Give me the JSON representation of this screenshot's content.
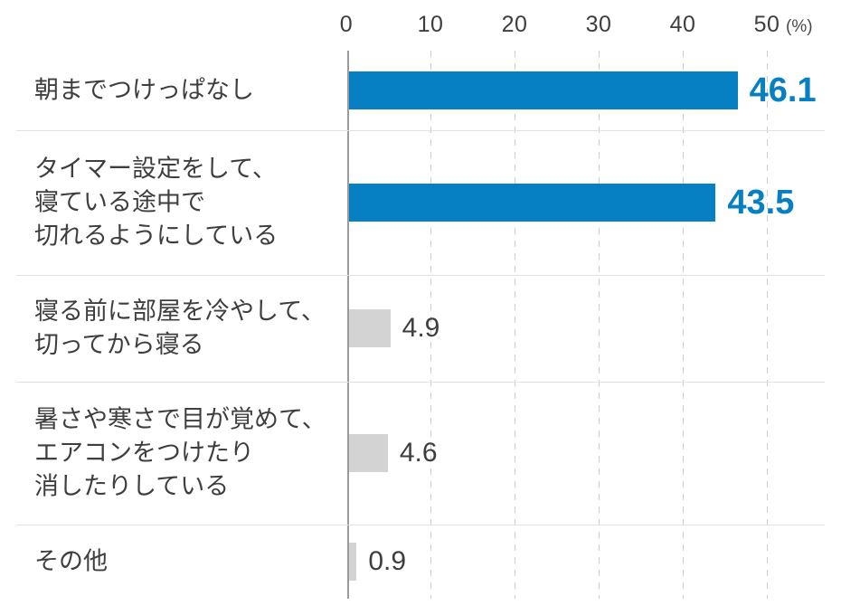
{
  "chart_data": {
    "type": "bar",
    "orientation": "horizontal",
    "title": "",
    "xlabel": "",
    "ylabel": "",
    "unit_label": "(%)",
    "x_ticks": [
      "0",
      "10",
      "20",
      "30",
      "40",
      "50"
    ],
    "xlim": [
      0,
      50
    ],
    "grid": "dashed-vertical",
    "legend": "none",
    "colors": {
      "primary": "#0680C3",
      "secondary": "#D3D3D3",
      "text": "#3E3E3E"
    },
    "bars": [
      {
        "label_lines": [
          "朝までつけっぱなし"
        ],
        "value": "46.1",
        "color": "#0680C3",
        "value_color": "#0680C3",
        "emphasis": true
      },
      {
        "label_lines": [
          "タイマー設定をして、",
          "寝ている途中で",
          "切れるようにしている"
        ],
        "value": "43.5",
        "color": "#0680C3",
        "value_color": "#0680C3",
        "emphasis": true
      },
      {
        "label_lines": [
          "寝る前に部屋を冷やして、",
          "切ってから寝る"
        ],
        "value": "4.9",
        "color": "#D3D3D3",
        "value_color": "#3E3E3E",
        "emphasis": false
      },
      {
        "label_lines": [
          "暑さや寒さで目が覚めて、",
          "エアコンをつけたり",
          "消したりしている"
        ],
        "value": "4.6",
        "color": "#D3D3D3",
        "value_color": "#3E3E3E",
        "emphasis": false
      },
      {
        "label_lines": [
          "その他"
        ],
        "value": "0.9",
        "color": "#D3D3D3",
        "value_color": "#3E3E3E",
        "emphasis": false
      }
    ]
  }
}
